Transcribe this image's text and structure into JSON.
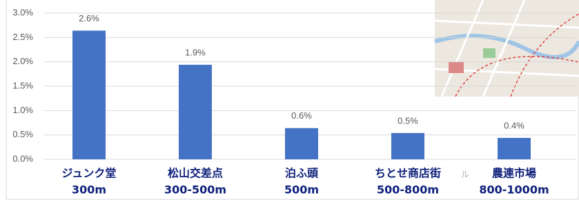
{
  "chart_data": {
    "type": "bar",
    "categories": [
      "ジュンク堂",
      "松山交差点",
      "泊ふ頭",
      "ちとせ商店街",
      "農連市場"
    ],
    "category_distances": [
      "300m",
      "300-500m",
      "500m",
      "500-800m",
      "800-1000m"
    ],
    "values": [
      2.64,
      1.94,
      0.64,
      0.54,
      0.44
    ],
    "value_labels": [
      "2.6%",
      "1.9%",
      "0.6%",
      "0.5%",
      "0.4%"
    ],
    "color": "#4472c4",
    "ylim": [
      0,
      3.0
    ],
    "yticks": [
      {
        "value": 0,
        "label": "0.0%"
      },
      {
        "value": 0.5,
        "label": "0.5%"
      },
      {
        "value": 1.0,
        "label": "1.0%"
      },
      {
        "value": 1.5,
        "label": "1.5%"
      },
      {
        "value": 2.0,
        "label": "2.0%"
      },
      {
        "value": 2.5,
        "label": "2.5%"
      },
      {
        "value": 3.0,
        "label": "3.0%"
      }
    ],
    "grid": true,
    "annotations": [
      "ル"
    ]
  }
}
